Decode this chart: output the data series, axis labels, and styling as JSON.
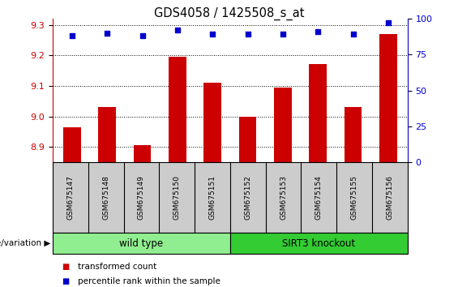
{
  "title": "GDS4058 / 1425508_s_at",
  "samples": [
    "GSM675147",
    "GSM675148",
    "GSM675149",
    "GSM675150",
    "GSM675151",
    "GSM675152",
    "GSM675153",
    "GSM675154",
    "GSM675155",
    "GSM675156"
  ],
  "transformed_count": [
    8.965,
    9.03,
    8.905,
    9.195,
    9.11,
    9.0,
    9.095,
    9.17,
    9.03,
    9.27
  ],
  "percentile_rank": [
    88,
    90,
    88,
    92,
    89,
    89,
    89,
    91,
    89,
    97
  ],
  "ylim_left": [
    8.85,
    9.32
  ],
  "ylim_right": [
    0,
    100
  ],
  "yticks_left": [
    8.9,
    9.0,
    9.1,
    9.2,
    9.3
  ],
  "yticks_right": [
    0,
    25,
    50,
    75,
    100
  ],
  "bar_color": "#cc0000",
  "dot_color": "#0000cc",
  "groups": [
    {
      "label": "wild type",
      "start": 0,
      "end": 5,
      "color": "#90ee90"
    },
    {
      "label": "SIRT3 knockout",
      "start": 5,
      "end": 10,
      "color": "#33cc33"
    }
  ],
  "group_label_prefix": "genotype/variation",
  "legend_items": [
    {
      "color": "#cc0000",
      "label": "transformed count"
    },
    {
      "color": "#0000cc",
      "label": "percentile rank within the sample"
    }
  ],
  "plot_bg_color": "#ffffff",
  "xlabel_bg_color": "#cccccc",
  "dotted_line_color": "#000000",
  "bar_bottom": 8.85,
  "fig_width": 5.65,
  "fig_height": 3.54
}
